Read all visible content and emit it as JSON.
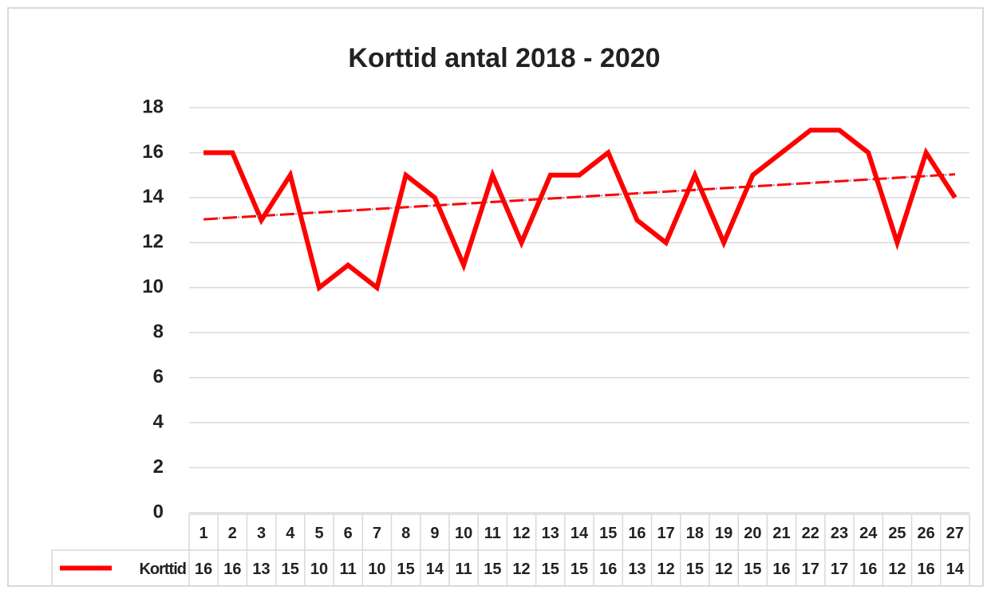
{
  "chart_data": {
    "type": "line",
    "title": "Korttid antal 2018 - 2020",
    "categories": [
      1,
      2,
      3,
      4,
      5,
      6,
      7,
      8,
      9,
      10,
      11,
      12,
      13,
      14,
      15,
      16,
      17,
      18,
      19,
      20,
      21,
      22,
      23,
      24,
      25,
      26,
      27
    ],
    "series": [
      {
        "name": "Korttid",
        "color": "#ff0000",
        "values": [
          16,
          16,
          13,
          15,
          10,
          11,
          10,
          15,
          14,
          11,
          15,
          12,
          15,
          15,
          16,
          13,
          12,
          15,
          12,
          15,
          16,
          17,
          17,
          16,
          12,
          16,
          14
        ]
      }
    ],
    "ylim": [
      0,
      18
    ],
    "yticks": [
      0,
      2,
      4,
      6,
      8,
      10,
      12,
      14,
      16,
      18
    ],
    "grid": true,
    "trendline": "linear",
    "data_table": true
  }
}
